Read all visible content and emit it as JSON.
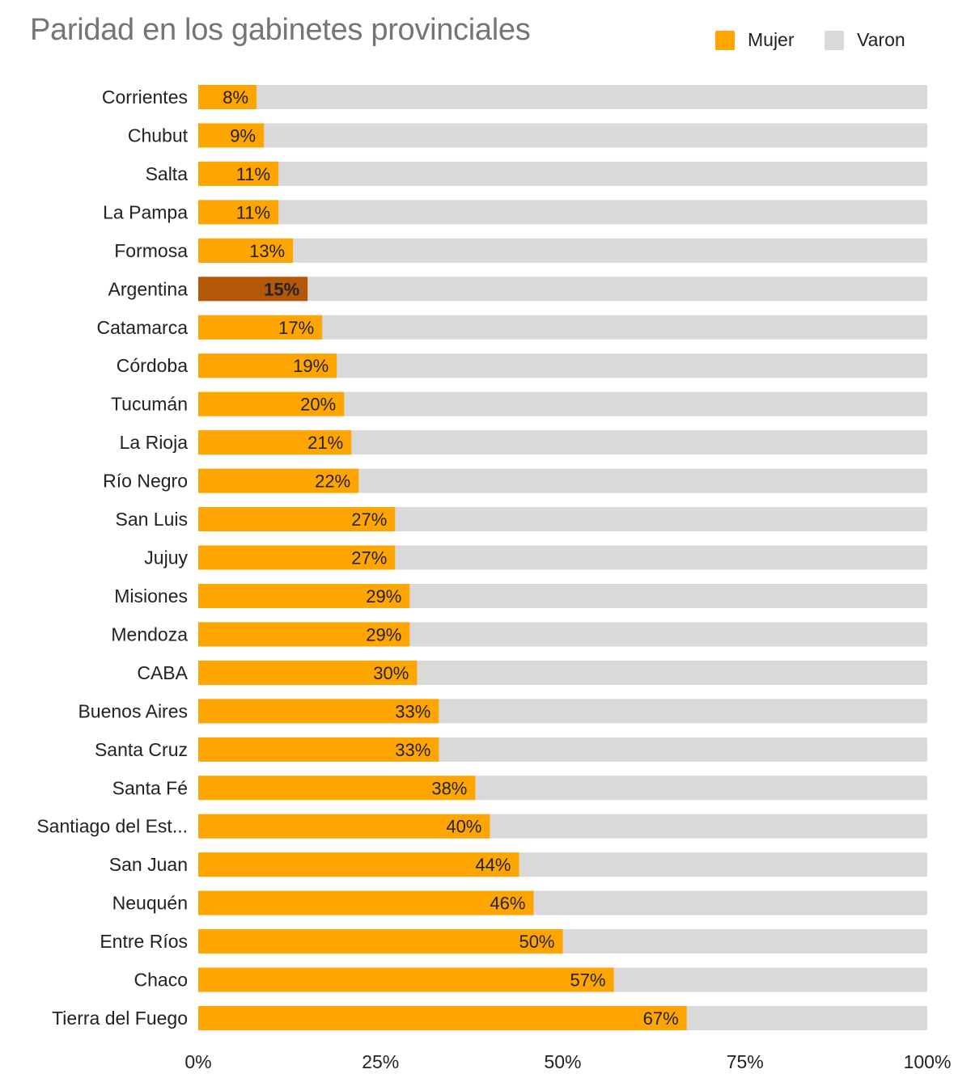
{
  "chart_data": {
    "type": "bar",
    "orientation": "horizontal",
    "stacked": "percent",
    "title": "Paridad en los gabinetes provinciales",
    "xlabel": "",
    "ylabel": "",
    "xlim": [
      0,
      100
    ],
    "x_ticks": [
      "0%",
      "25%",
      "50%",
      "75%",
      "100%"
    ],
    "x_tick_values": [
      0,
      25,
      50,
      75,
      100
    ],
    "grid": false,
    "legend": "top-right",
    "categories": [
      "Corrientes",
      "Chubut",
      "Salta",
      "La Pampa",
      "Formosa",
      "Argentina",
      "Catamarca",
      "Córdoba",
      "Tucumán",
      "La Rioja",
      "Río Negro",
      "San Luis",
      "Jujuy",
      "Misiones",
      "Mendoza",
      "CABA",
      "Buenos Aires",
      "Santa Cruz",
      "Santa Fé",
      "Santiago del Est...",
      "San Juan",
      "Neuquén",
      "Entre Ríos",
      "Chaco",
      "Tierra del Fuego"
    ],
    "series": [
      {
        "name": "Mujer",
        "color": "#FFA500",
        "values": [
          8,
          9,
          11,
          11,
          13,
          15,
          17,
          19,
          20,
          21,
          22,
          27,
          27,
          29,
          29,
          30,
          33,
          33,
          38,
          40,
          44,
          46,
          50,
          57,
          67
        ]
      },
      {
        "name": "Varon",
        "color": "#D9D9D9",
        "values": [
          92,
          91,
          89,
          89,
          87,
          85,
          83,
          81,
          80,
          79,
          78,
          73,
          73,
          71,
          71,
          70,
          67,
          67,
          62,
          60,
          56,
          54,
          50,
          43,
          33
        ]
      }
    ],
    "data_labels": [
      "8%",
      "9%",
      "11%",
      "11%",
      "13%",
      "15%",
      "17%",
      "19%",
      "20%",
      "21%",
      "22%",
      "27%",
      "27%",
      "29%",
      "29%",
      "30%",
      "33%",
      "33%",
      "38%",
      "40%",
      "44%",
      "46%",
      "50%",
      "57%",
      "67%"
    ],
    "highlight": {
      "category": "Argentina",
      "color": "#B35806",
      "label_color": "#FFFFFF"
    }
  }
}
